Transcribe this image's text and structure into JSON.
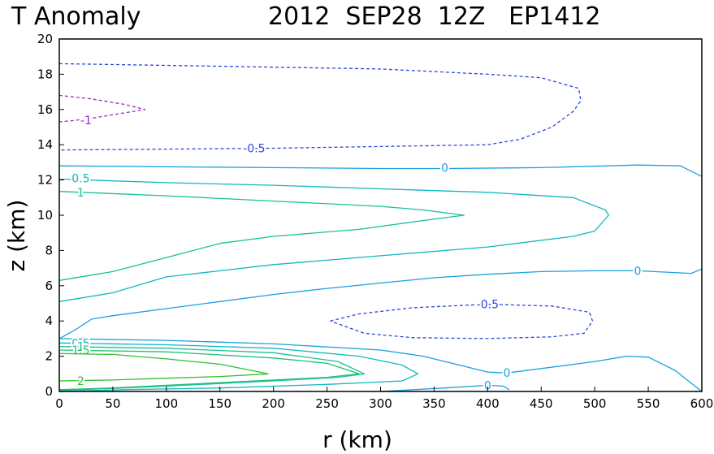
{
  "chart_data": {
    "type": "contour",
    "title_left": "T Anomaly",
    "title_right": "2012  SEP28  12Z   EP1412",
    "xlabel": "r (km)",
    "ylabel": "z (km)",
    "xlim": [
      0,
      600
    ],
    "ylim": [
      0,
      20
    ],
    "xticks": [
      "0",
      "50",
      "100",
      "150",
      "200",
      "250",
      "300",
      "350",
      "400",
      "450",
      "500",
      "550",
      "600"
    ],
    "yticks": [
      "0",
      "2",
      "4",
      "6",
      "8",
      "10",
      "12",
      "14",
      "16",
      "18",
      "20"
    ],
    "contours": [
      {
        "level": -1,
        "color": "#9a2ac8",
        "dashed": true,
        "label": "-1",
        "label_at": [
          25,
          15.4
        ],
        "points": [
          [
            0,
            16.8
          ],
          [
            30,
            16.6
          ],
          [
            60,
            16.3
          ],
          [
            80,
            16.0
          ],
          [
            60,
            15.8
          ],
          [
            30,
            15.5
          ],
          [
            10,
            15.35
          ],
          [
            0,
            15.3
          ]
        ]
      },
      {
        "level": -0.5,
        "color": "#2f47d8",
        "dashed": true,
        "label": "-0.5",
        "label_at": [
          182,
          13.8
        ],
        "points": [
          [
            0,
            18.6
          ],
          [
            100,
            18.5
          ],
          [
            200,
            18.4
          ],
          [
            300,
            18.3
          ],
          [
            400,
            18.0
          ],
          [
            450,
            17.8
          ],
          [
            485,
            17.2
          ],
          [
            487,
            16.5
          ],
          [
            480,
            15.9
          ],
          [
            460,
            15.0
          ],
          [
            430,
            14.3
          ],
          [
            400,
            14.0
          ],
          [
            300,
            13.9
          ],
          [
            200,
            13.8
          ],
          [
            100,
            13.75
          ],
          [
            0,
            13.7
          ]
        ]
      },
      {
        "level": -0.5,
        "color": "#2f47d8",
        "dashed": true,
        "label": "-0.5",
        "label_at": [
          400,
          4.95
        ],
        "points": [
          [
            253,
            4.0
          ],
          [
            280,
            4.4
          ],
          [
            330,
            4.75
          ],
          [
            400,
            4.95
          ],
          [
            460,
            4.85
          ],
          [
            495,
            4.5
          ],
          [
            498,
            4.0
          ],
          [
            490,
            3.3
          ],
          [
            460,
            3.1
          ],
          [
            400,
            3.0
          ],
          [
            330,
            3.05
          ],
          [
            285,
            3.3
          ],
          [
            253,
            4.0
          ]
        ]
      },
      {
        "level": 0,
        "color": "#1aa0e0",
        "dashed": false,
        "label": "0",
        "label_at": [
          360,
          12.7
        ],
        "points": [
          [
            0,
            12.8
          ],
          [
            100,
            12.75
          ],
          [
            200,
            12.7
          ],
          [
            300,
            12.65
          ],
          [
            360,
            12.65
          ],
          [
            450,
            12.7
          ],
          [
            540,
            12.85
          ],
          [
            580,
            12.8
          ],
          [
            600,
            12.2
          ]
        ]
      },
      {
        "level": 0,
        "color": "#1aa0e0",
        "dashed": false,
        "label": "0",
        "label_at": [
          540,
          6.85
        ],
        "points": [
          [
            0,
            3.0
          ],
          [
            15,
            3.5
          ],
          [
            30,
            4.1
          ],
          [
            50,
            4.3
          ],
          [
            100,
            4.7
          ],
          [
            150,
            5.1
          ],
          [
            200,
            5.5
          ],
          [
            250,
            5.85
          ],
          [
            300,
            6.15
          ],
          [
            350,
            6.45
          ],
          [
            400,
            6.65
          ],
          [
            450,
            6.8
          ],
          [
            500,
            6.85
          ],
          [
            540,
            6.85
          ],
          [
            590,
            6.7
          ],
          [
            600,
            6.95
          ]
        ]
      },
      {
        "level": 0,
        "color": "#1aa0e0",
        "dashed": false,
        "label": "0",
        "label_at": [
          418,
          1.05
        ],
        "points": [
          [
            0,
            3.0
          ],
          [
            100,
            2.9
          ],
          [
            200,
            2.7
          ],
          [
            300,
            2.35
          ],
          [
            340,
            2.0
          ],
          [
            380,
            1.4
          ],
          [
            400,
            1.1
          ],
          [
            418,
            1.05
          ],
          [
            450,
            1.3
          ],
          [
            500,
            1.7
          ],
          [
            530,
            2.0
          ],
          [
            550,
            1.95
          ],
          [
            575,
            1.2
          ],
          [
            600,
            0.0
          ]
        ]
      },
      {
        "level": 0,
        "color": "#1aa0e0",
        "dashed": false,
        "label": "0",
        "label_at": [
          400,
          0.35
        ],
        "points": [
          [
            300,
            0.0
          ],
          [
            360,
            0.2
          ],
          [
            400,
            0.35
          ],
          [
            415,
            0.3
          ],
          [
            420,
            0.1
          ]
        ]
      },
      {
        "level": 0.5,
        "color": "#10b8c0",
        "dashed": false,
        "label": "0.5",
        "label_at": [
          20,
          12.1
        ],
        "points": [
          [
            0,
            12.05
          ],
          [
            100,
            11.85
          ],
          [
            200,
            11.7
          ],
          [
            300,
            11.5
          ],
          [
            400,
            11.3
          ],
          [
            480,
            11.0
          ],
          [
            510,
            10.3
          ],
          [
            513,
            10.0
          ],
          [
            500,
            9.1
          ],
          [
            480,
            8.8
          ],
          [
            400,
            8.2
          ],
          [
            300,
            7.7
          ],
          [
            200,
            7.2
          ],
          [
            150,
            6.85
          ],
          [
            100,
            6.5
          ],
          [
            50,
            5.6
          ],
          [
            0,
            5.1
          ]
        ]
      },
      {
        "level": 0.5,
        "color": "#10b8c0",
        "dashed": false,
        "label": "0.5",
        "label_at": [
          20,
          2.75
        ],
        "points": [
          [
            0,
            2.75
          ],
          [
            100,
            2.65
          ],
          [
            200,
            2.45
          ],
          [
            280,
            2.0
          ],
          [
            320,
            1.5
          ],
          [
            335,
            1.0
          ],
          [
            320,
            0.6
          ],
          [
            250,
            0.4
          ],
          [
            150,
            0.2
          ],
          [
            60,
            0.1
          ],
          [
            0,
            0.0
          ]
        ]
      },
      {
        "level": 1,
        "color": "#18c098",
        "dashed": false,
        "label": "1",
        "label_at": [
          20,
          11.3
        ],
        "points": [
          [
            0,
            11.35
          ],
          [
            100,
            11.1
          ],
          [
            200,
            10.8
          ],
          [
            300,
            10.5
          ],
          [
            340,
            10.3
          ],
          [
            378,
            10.0
          ],
          [
            340,
            9.7
          ],
          [
            280,
            9.2
          ],
          [
            200,
            8.8
          ],
          [
            150,
            8.4
          ],
          [
            100,
            7.6
          ],
          [
            50,
            6.8
          ],
          [
            0,
            6.3
          ]
        ]
      },
      {
        "level": 1,
        "color": "#18c098",
        "dashed": false,
        "label": "1",
        "label_at": [
          20,
          2.55
        ],
        "points": [
          [
            0,
            2.55
          ],
          [
            100,
            2.45
          ],
          [
            200,
            2.2
          ],
          [
            260,
            1.7
          ],
          [
            285,
            1.0
          ],
          [
            260,
            0.8
          ],
          [
            200,
            0.6
          ],
          [
            100,
            0.3
          ],
          [
            0,
            0.05
          ]
        ]
      },
      {
        "level": 1.5,
        "color": "#20c070",
        "dashed": false,
        "label": "1.5",
        "label_at": [
          20,
          2.35
        ],
        "points": [
          [
            0,
            2.35
          ],
          [
            100,
            2.25
          ],
          [
            200,
            1.9
          ],
          [
            250,
            1.6
          ],
          [
            280,
            1.0
          ],
          [
            250,
            0.8
          ],
          [
            150,
            0.5
          ],
          [
            50,
            0.2
          ],
          [
            0,
            0.1
          ]
        ]
      },
      {
        "level": 2,
        "color": "#30c030",
        "dashed": false,
        "label": "2",
        "label_at": [
          20,
          0.6
        ],
        "points": [
          [
            0,
            2.15
          ],
          [
            50,
            2.1
          ],
          [
            100,
            1.85
          ],
          [
            150,
            1.55
          ],
          [
            195,
            1.0
          ],
          [
            150,
            0.85
          ],
          [
            100,
            0.75
          ],
          [
            50,
            0.65
          ],
          [
            0,
            0.6
          ]
        ]
      }
    ]
  }
}
